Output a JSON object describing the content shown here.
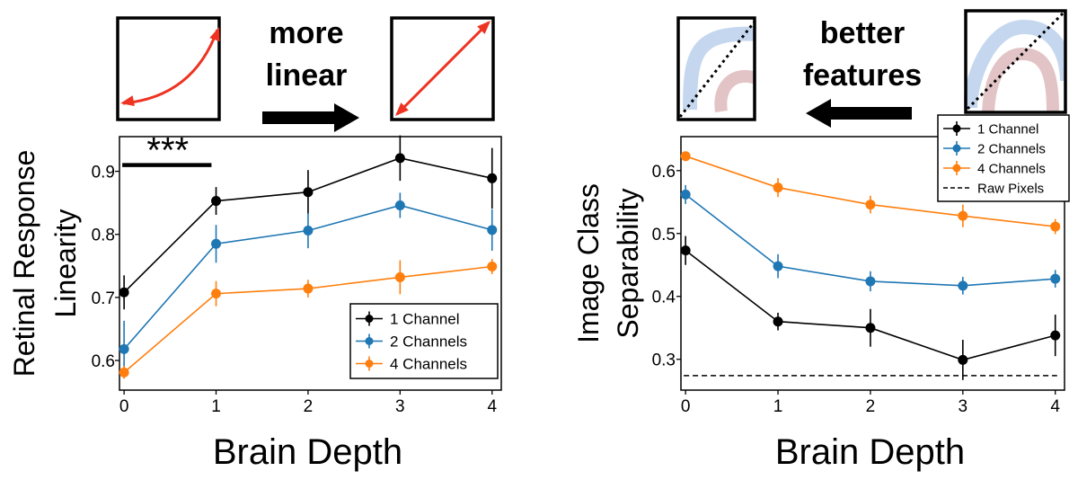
{
  "figure": {
    "left_arrow_text_line1": "more",
    "left_arrow_text_line2": "linear",
    "right_arrow_text_line1": "better",
    "right_arrow_text_line2": "features",
    "significance": "***",
    "colors": {
      "one_channel": "#000000",
      "two_channels": "#1f77b4",
      "four_channels": "#ff7f0e",
      "curve_arrow": "#ee3322",
      "blue_band": "#c5d7ef",
      "red_band": "#e2c4c6"
    },
    "icons": [
      "curved-arrow-icon",
      "straight-arrow-icon",
      "entangled-manifold-icon",
      "separated-manifold-icon",
      "arrow-right-icon",
      "arrow-left-icon"
    ]
  },
  "chart_data": [
    {
      "type": "line",
      "ylabel_line1": "Retinal Response",
      "ylabel_line2": "Linearity",
      "xlabel": "Brain Depth",
      "x": [
        0,
        1,
        2,
        3,
        4
      ],
      "xticks": [
        "0",
        "1",
        "2",
        "3",
        "4"
      ],
      "yticks": [
        "0.6",
        "0.7",
        "0.8",
        "0.9"
      ],
      "ylim": [
        0.553,
        0.955
      ],
      "xlim": [
        -0.05,
        4.1
      ],
      "legend_position": "lower-right",
      "significance_bar": [
        0,
        0.95,
        0.91
      ],
      "series": [
        {
          "name": "1 Channel",
          "color": "#000000",
          "values": [
            0.708,
            0.853,
            0.867,
            0.921,
            0.889
          ],
          "errors": [
            0.027,
            0.022,
            0.035,
            0.036,
            0.048
          ]
        },
        {
          "name": "2 Channels",
          "color": "#1f77b4",
          "values": [
            0.618,
            0.785,
            0.806,
            0.846,
            0.807
          ],
          "errors": [
            0.045,
            0.03,
            0.028,
            0.02,
            0.033
          ]
        },
        {
          "name": "4 Channels",
          "color": "#ff7f0e",
          "values": [
            0.581,
            0.706,
            0.714,
            0.732,
            0.749
          ],
          "errors": [
            0.01,
            0.02,
            0.014,
            0.027,
            0.012
          ]
        }
      ]
    },
    {
      "type": "line",
      "ylabel_line1": "Image Class",
      "ylabel_line2": "Separability",
      "xlabel": "Brain Depth",
      "x": [
        0,
        1,
        2,
        3,
        4
      ],
      "xticks": [
        "0",
        "1",
        "2",
        "3",
        "4"
      ],
      "yticks": [
        "0.3",
        "0.4",
        "0.5",
        "0.6"
      ],
      "ylim": [
        0.251,
        0.654
      ],
      "xlim": [
        -0.05,
        4.1
      ],
      "legend_position": "top-right",
      "series": [
        {
          "name": "1 Channel",
          "color": "#000000",
          "values": [
            0.473,
            0.36,
            0.35,
            0.299,
            0.338
          ],
          "errors": [
            0.023,
            0.014,
            0.03,
            0.032,
            0.033
          ]
        },
        {
          "name": "2 Channels",
          "color": "#1f77b4",
          "values": [
            0.562,
            0.448,
            0.424,
            0.417,
            0.428
          ],
          "errors": [
            0.015,
            0.019,
            0.016,
            0.014,
            0.014
          ]
        },
        {
          "name": "4 Channels",
          "color": "#ff7f0e",
          "values": [
            0.623,
            0.573,
            0.546,
            0.528,
            0.511
          ],
          "errors": [
            0.005,
            0.015,
            0.014,
            0.018,
            0.012
          ]
        }
      ],
      "reference_line": {
        "name": "Raw Pixels",
        "value": 0.274,
        "color": "#000000",
        "style": "dashed"
      }
    }
  ]
}
